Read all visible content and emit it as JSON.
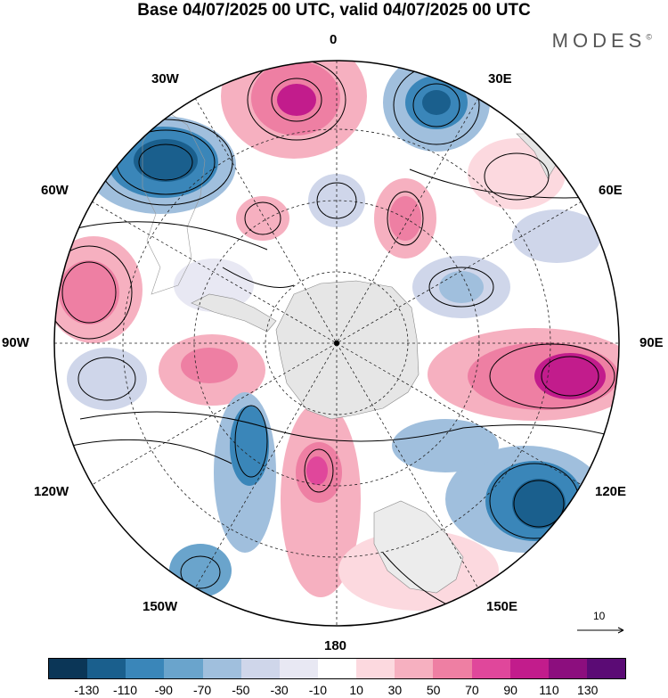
{
  "title": "Base 04/07/2025 00 UTC, valid 04/07/2025 00 UTC",
  "brand": "MODES",
  "brand_mark": "©",
  "map": {
    "projection": "south polar stereographic",
    "longitude_labels": {
      "lon_0": "0",
      "lon_30e": "30E",
      "lon_60e": "60E",
      "lon_90e": "90E",
      "lon_120e": "120E",
      "lon_150e": "150E",
      "lon_180": "180",
      "lon_150w": "150W",
      "lon_120w": "120W",
      "lon_90w": "90W",
      "lon_60w": "60W",
      "lon_30w": "30W"
    },
    "graticule": "dashed",
    "vector_reference": "10"
  },
  "colorbar": {
    "colors": [
      "#0b3657",
      "#1a5f8d",
      "#3a86b9",
      "#6aa4cc",
      "#a0bfdd",
      "#cfd6ea",
      "#e8e8f3",
      "#ffffff",
      "#fcd9df",
      "#f6b0c0",
      "#ee7fa3",
      "#e0479b",
      "#c21c8c",
      "#8c0e7e",
      "#5b0b75"
    ],
    "tick_labels": [
      "-130",
      "-110",
      "-90",
      "-70",
      "-50",
      "-30",
      "-10",
      "10",
      "30",
      "50",
      "70",
      "90",
      "110",
      "130"
    ]
  }
}
